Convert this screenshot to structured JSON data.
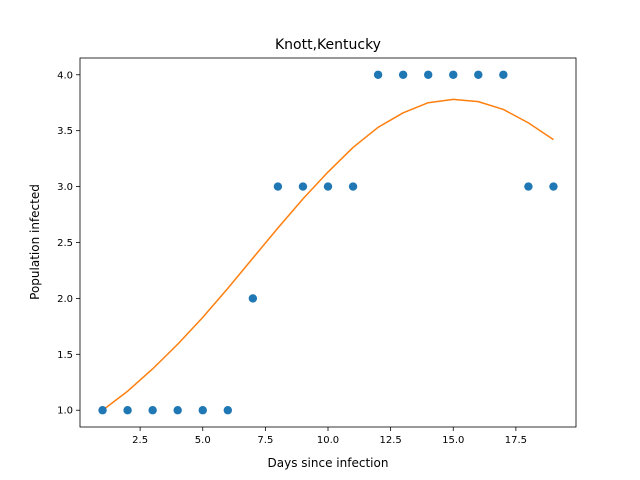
{
  "chart_data": {
    "type": "scatter",
    "title": "Knott,Kentucky",
    "xlabel": "Days since infection",
    "ylabel": "Population infected",
    "xlim": [
      0.1,
      19.9
    ],
    "ylim": [
      0.85,
      4.15
    ],
    "grid": false,
    "legend": "none",
    "xticks": [
      2.5,
      5.0,
      7.5,
      10.0,
      12.5,
      15.0,
      17.5
    ],
    "xtick_labels": [
      "2.5",
      "5.0",
      "7.5",
      "10.0",
      "12.5",
      "15.0",
      "17.5"
    ],
    "yticks": [
      1.0,
      1.5,
      2.0,
      2.5,
      3.0,
      3.5,
      4.0
    ],
    "ytick_labels": [
      "1.0",
      "1.5",
      "2.0",
      "2.5",
      "3.0",
      "3.5",
      "4.0"
    ],
    "series": [
      {
        "kind": "scatter",
        "color": "#1f77b4",
        "x": [
          1,
          2,
          3,
          4,
          5,
          6,
          7,
          8,
          9,
          10,
          11,
          12,
          13,
          14,
          15,
          16,
          17,
          18,
          19
        ],
        "y": [
          1,
          1,
          1,
          1,
          1,
          1,
          2,
          3,
          3,
          3,
          3,
          4,
          4,
          4,
          4,
          4,
          4,
          3,
          3
        ]
      },
      {
        "kind": "line",
        "color": "#ff7f0e",
        "x": [
          1,
          2,
          3,
          4,
          5,
          6,
          7,
          8,
          9,
          10,
          11,
          12,
          13,
          14,
          15,
          16,
          17,
          18,
          19
        ],
        "y": [
          1.0,
          1.17,
          1.37,
          1.59,
          1.83,
          2.09,
          2.36,
          2.63,
          2.89,
          3.13,
          3.35,
          3.53,
          3.66,
          3.75,
          3.78,
          3.76,
          3.69,
          3.57,
          3.42
        ]
      }
    ]
  }
}
